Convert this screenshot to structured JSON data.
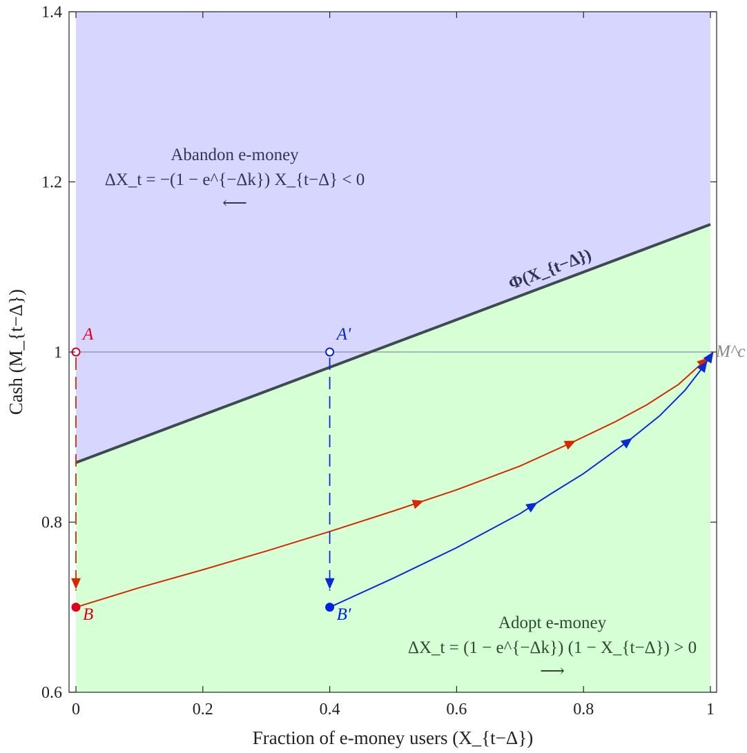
{
  "chart_data": {
    "type": "line",
    "xlabel": "Fraction of e-money users (X_{t−Δ})",
    "ylabel": "Cash (M_{t−Δ})",
    "xlim": [
      0,
      1
    ],
    "ylim": [
      0.6,
      1.4
    ],
    "x_ticks": [
      0,
      0.2,
      0.4,
      0.6,
      0.8,
      1
    ],
    "x_tick_labels": [
      "0",
      "0.2",
      "0.4",
      "0.6",
      "0.8",
      "1"
    ],
    "y_ticks": [
      0.6,
      0.8,
      1,
      1.2,
      1.4
    ],
    "y_tick_labels": [
      "0.6",
      "0.8",
      "1",
      "1.2",
      "1.4"
    ],
    "grid": false,
    "colors": {
      "abandon_region": "#d6d6ff",
      "adopt_region": "#d6ffd6",
      "threshold": "#3d4a4f",
      "red_path": "#d42a00",
      "red_points": "#e0001b",
      "blue_path": "#0a2ad4",
      "blue_points": "#0022e0",
      "mc_line": "#8a8aa8",
      "abandon_text": "#33335a",
      "adopt_text": "#2d4a2d"
    },
    "threshold_line": {
      "label": "Φ(X_{t−Δ})",
      "x": [
        0,
        1
      ],
      "y": [
        0.87,
        1.15
      ]
    },
    "reference_line": {
      "label": "M^c",
      "y": 1
    },
    "regions": {
      "abandon": {
        "title": "Abandon e-money",
        "formula": "ΔX_t = −(1 − e^{−Δk}) X_{t−Δ} < 0",
        "arrow": "⟵"
      },
      "adopt": {
        "title": "Adopt e-money",
        "formula": "ΔX_t = (1 − e^{−Δk}) (1 − X_{t−Δ}) > 0",
        "arrow": "⟶"
      }
    },
    "points": [
      {
        "label": "A",
        "x": 0,
        "y": 1,
        "filled": false,
        "series": "red"
      },
      {
        "label": "B",
        "x": 0,
        "y": 0.7,
        "filled": true,
        "series": "red"
      },
      {
        "label": "A′",
        "x": 0.4,
        "y": 1,
        "filled": false,
        "series": "blue"
      },
      {
        "label": "B′",
        "x": 0.4,
        "y": 0.7,
        "filled": true,
        "series": "blue"
      }
    ],
    "series": [
      {
        "color_key": "red_path",
        "jump": {
          "from": [
            0,
            1
          ],
          "to": [
            0,
            0.7
          ]
        },
        "x": [
          0,
          0.1,
          0.2,
          0.3,
          0.4,
          0.5,
          0.6,
          0.7,
          0.78,
          0.85,
          0.9,
          0.95,
          0.99
        ],
        "y": [
          0.7,
          0.723,
          0.744,
          0.766,
          0.789,
          0.813,
          0.838,
          0.866,
          0.893,
          0.918,
          0.938,
          0.962,
          0.989
        ],
        "arrows_at": [
          0.54,
          0.78,
          0.99
        ]
      },
      {
        "color_key": "blue_path",
        "jump": {
          "from": [
            0.4,
            1
          ],
          "to": [
            0.4,
            0.7
          ]
        },
        "x": [
          0.4,
          0.5,
          0.6,
          0.7,
          0.75,
          0.8,
          0.87,
          0.92,
          0.96,
          0.99,
          1.0
        ],
        "y": [
          0.7,
          0.734,
          0.77,
          0.81,
          0.834,
          0.857,
          0.895,
          0.925,
          0.955,
          0.984,
          0.995
        ],
        "arrows_at": [
          0.72,
          0.87,
          0.99,
          1.0
        ]
      }
    ]
  }
}
